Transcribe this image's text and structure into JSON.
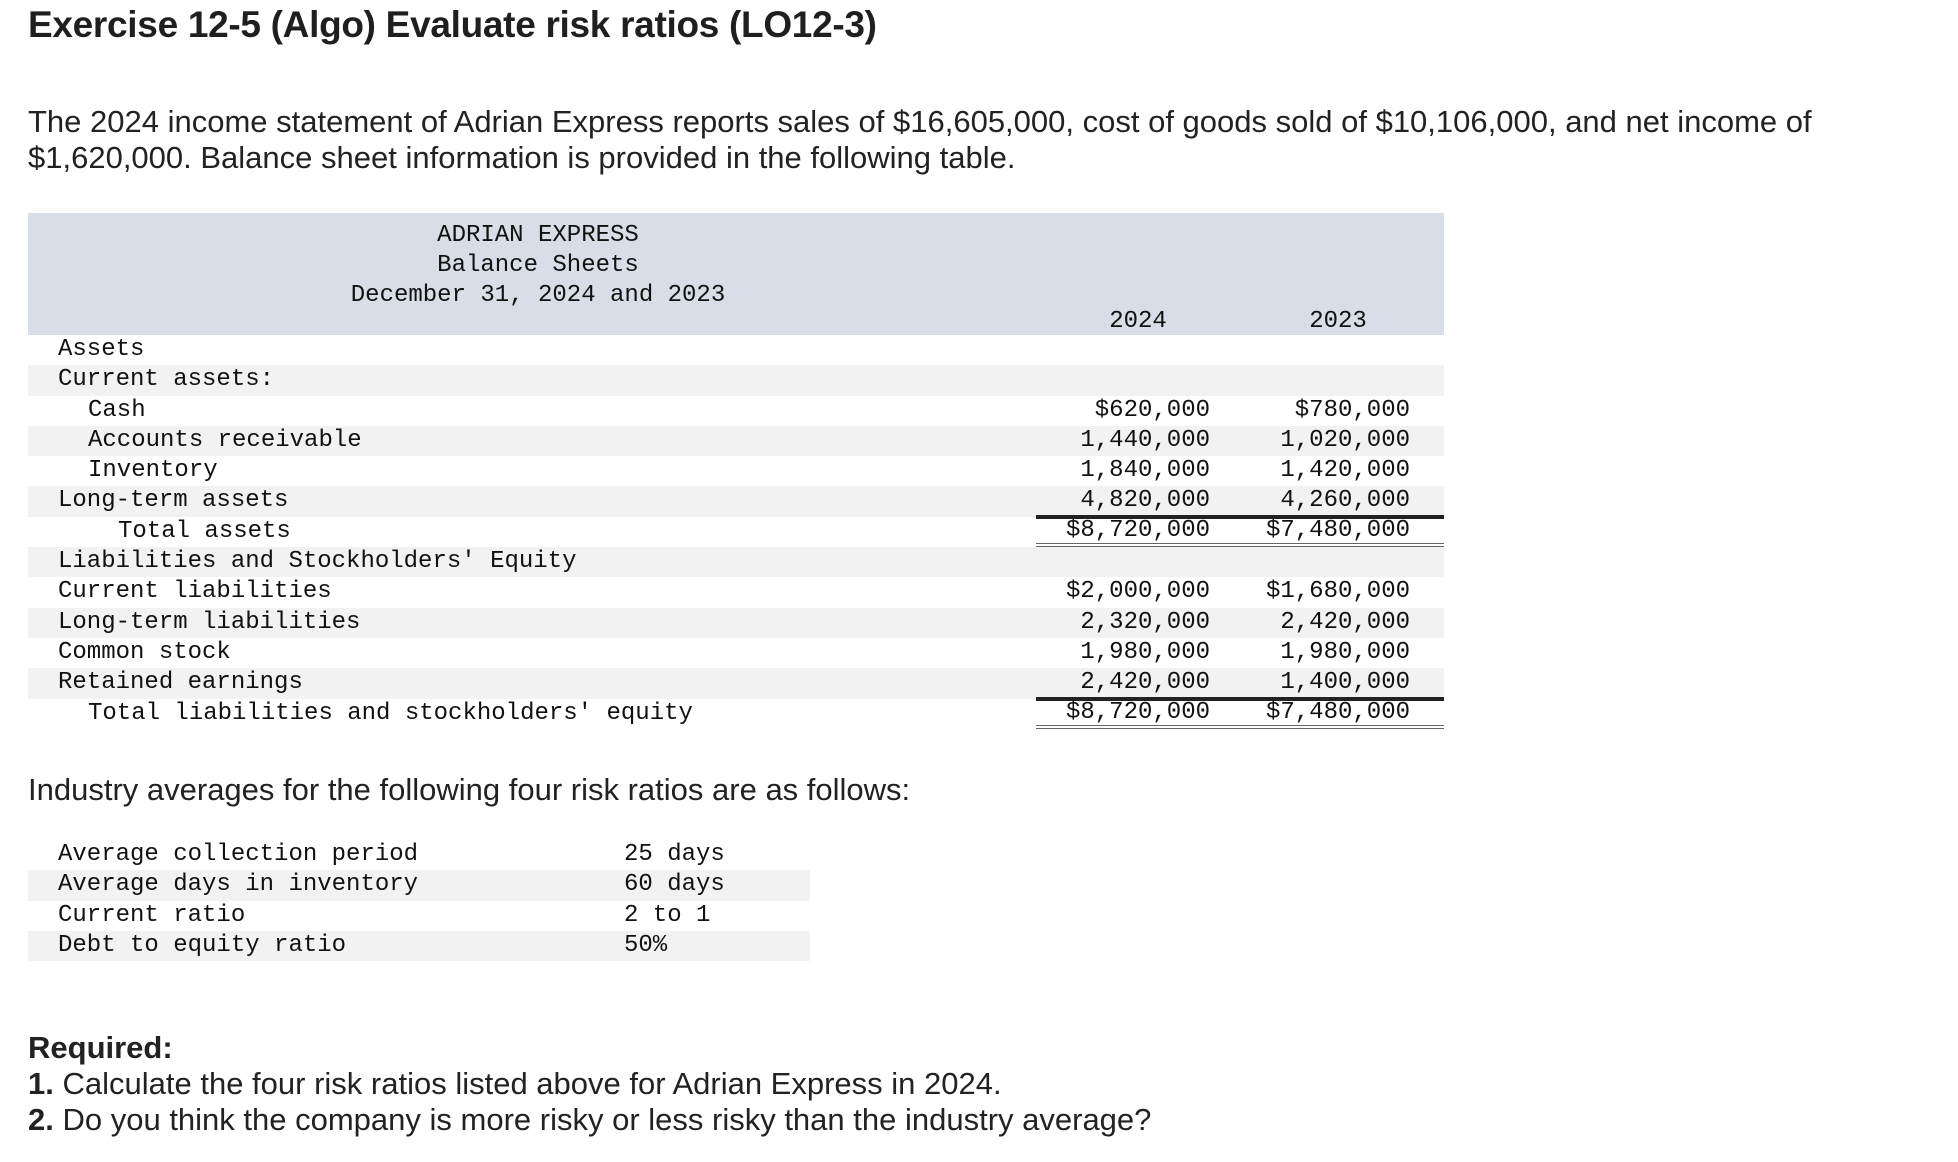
{
  "title": "Exercise 12-5 (Algo) Evaluate risk ratios (LO12-3)",
  "intro": "The 2024 income statement of Adrian Express reports sales of $16,605,000, cost of goods sold of $10,106,000, and net income of $1,620,000. Balance sheet information is provided in the following table.",
  "balance_sheet": {
    "company": "ADRIAN EXPRESS",
    "statement": "Balance Sheets",
    "date": "December 31, 2024 and 2023",
    "year1": "2024",
    "year2": "2023",
    "rows": [
      {
        "label": "Assets",
        "v1": "",
        "v2": ""
      },
      {
        "label": "Current assets:",
        "v1": "",
        "v2": ""
      },
      {
        "label": "Cash",
        "v1": "$620,000",
        "v2": "$780,000"
      },
      {
        "label": "Accounts receivable",
        "v1": "1,440,000",
        "v2": "1,020,000"
      },
      {
        "label": "Inventory",
        "v1": "1,840,000",
        "v2": "1,420,000"
      },
      {
        "label": "Long-term assets",
        "v1": "4,820,000",
        "v2": "4,260,000"
      },
      {
        "label": "Total assets",
        "v1": "$8,720,000",
        "v2": "$7,480,000"
      },
      {
        "label": "Liabilities and Stockholders' Equity",
        "v1": "",
        "v2": ""
      },
      {
        "label": "Current liabilities",
        "v1": "$2,000,000",
        "v2": "$1,680,000"
      },
      {
        "label": "Long-term liabilities",
        "v1": "2,320,000",
        "v2": "2,420,000"
      },
      {
        "label": "Common stock",
        "v1": "1,980,000",
        "v2": "1,980,000"
      },
      {
        "label": "Retained earnings",
        "v1": "2,420,000",
        "v2": "1,400,000"
      },
      {
        "label": "Total liabilities and stockholders' equity",
        "v1": "$8,720,000",
        "v2": "$7,480,000"
      }
    ]
  },
  "industry_intro": "Industry averages for the following four risk ratios are as follows:",
  "ratios": [
    {
      "label": "Average collection period",
      "value": "25 days"
    },
    {
      "label": "Average days in inventory",
      "value": "60 days"
    },
    {
      "label": "Current ratio",
      "value": "2 to 1"
    },
    {
      "label": "Debt to equity ratio",
      "value": "50%"
    }
  ],
  "required": {
    "heading": "Required:",
    "items": [
      {
        "num": "1.",
        "text": "Calculate the four risk ratios listed above for Adrian Express in 2024."
      },
      {
        "num": "2.",
        "text": "Do you think the company is more risky or less risky than the industry average?"
      }
    ]
  }
}
